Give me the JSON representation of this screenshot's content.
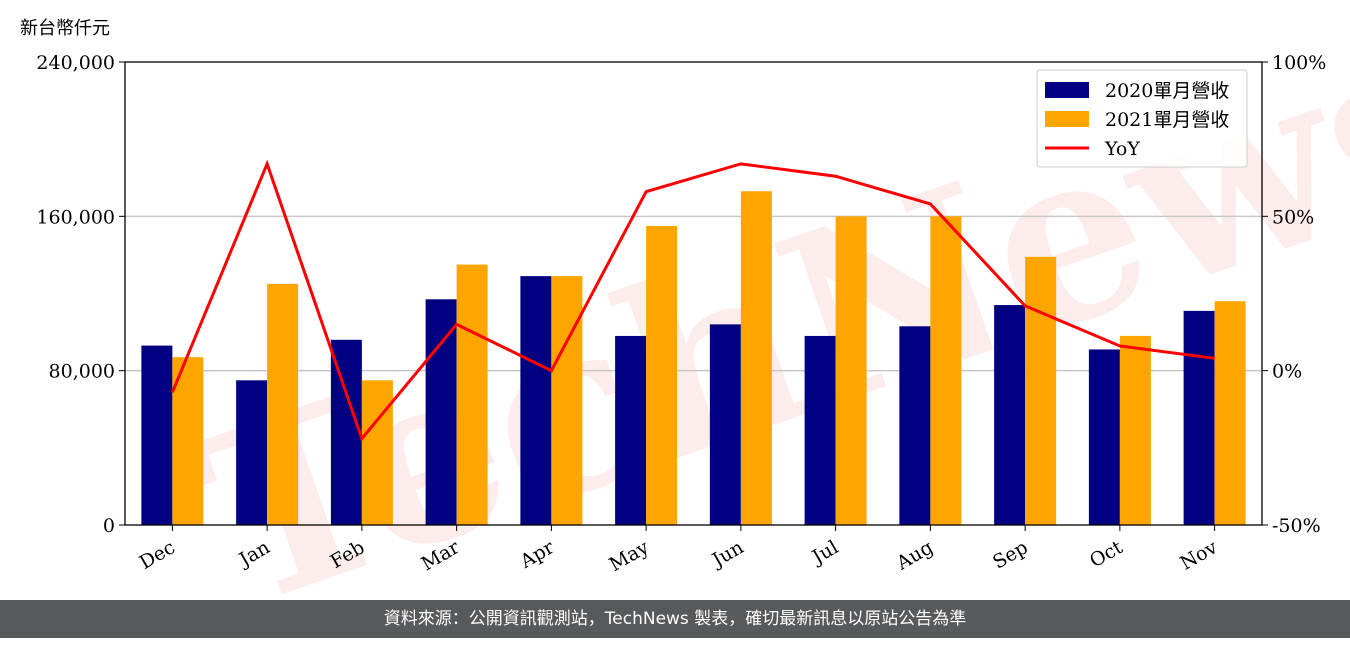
{
  "unit_label": "新台幣仟元",
  "watermark": "TechNews",
  "footer": "資料來源：公開資訊觀測站，TechNews 製表，確切最新訊息以原站公告為準",
  "chart_data": {
    "type": "bar",
    "categories": [
      "Dec",
      "Jan",
      "Feb",
      "Mar",
      "Apr",
      "May",
      "Jun",
      "Jul",
      "Aug",
      "Sep",
      "Oct",
      "Nov"
    ],
    "series": [
      {
        "name": "2020單月營收",
        "type": "bar",
        "axis": "left",
        "color": "#000080",
        "values": [
          93000,
          75000,
          96000,
          117000,
          129000,
          98000,
          104000,
          98000,
          103000,
          114000,
          91000,
          111000
        ]
      },
      {
        "name": "2021單月營收",
        "type": "bar",
        "axis": "left",
        "color": "#ffa500",
        "values": [
          87000,
          125000,
          75000,
          135000,
          129000,
          155000,
          173000,
          160000,
          160000,
          139000,
          98000,
          116000
        ]
      },
      {
        "name": "YoY",
        "type": "line",
        "axis": "right",
        "color": "#ff0000",
        "values": [
          -7,
          67,
          -22,
          15,
          0,
          58,
          67,
          63,
          54,
          21,
          8,
          4
        ]
      }
    ],
    "yticks_left": [
      "0",
      "80,000",
      "160,000",
      "240,000"
    ],
    "yticks_right": [
      "-50%",
      "0%",
      "50%",
      "100%"
    ],
    "ylim_left": [
      0,
      240000
    ],
    "ylim_right": [
      -50,
      100
    ],
    "grid": "horizontal",
    "legend_position": "top-right"
  }
}
